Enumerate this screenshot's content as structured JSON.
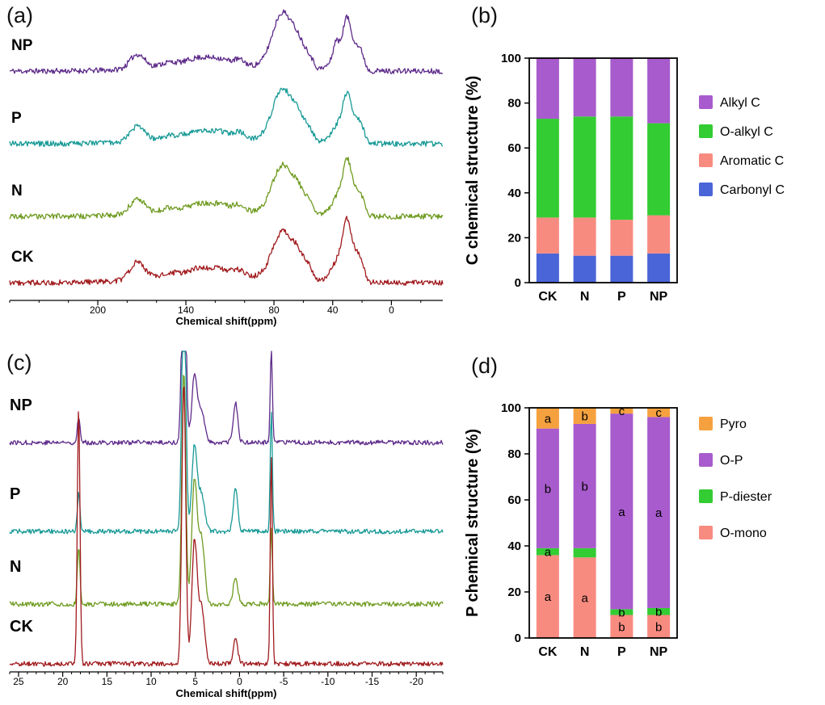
{
  "panels": [
    {
      "id": "a",
      "label": "(a)"
    },
    {
      "id": "b",
      "label": "(b)"
    },
    {
      "id": "c",
      "label": "(c)"
    },
    {
      "id": "d",
      "label": "(d)"
    }
  ],
  "chart_data": [
    {
      "panel": "a",
      "type": "line",
      "variant": "nmr-spectra",
      "nucleus": "13C",
      "xlabel": "Chemical shift(ppm)",
      "xlim": [
        260,
        -35
      ],
      "x_major_ticks": [
        200,
        140,
        80,
        40,
        0
      ],
      "x_minor_step": 20,
      "series": [
        {
          "name": "NP",
          "color": "#5e2b8a",
          "peaks": [
            [
              173,
              0.24,
              5
            ],
            [
              152,
              0.07,
              6
            ],
            [
              130,
              0.13,
              9
            ],
            [
              116,
              0.07,
              5
            ],
            [
              104,
              0.1,
              4
            ],
            [
              120,
              0.1,
              38
            ],
            [
              74,
              0.92,
              7
            ],
            [
              63,
              0.3,
              4
            ],
            [
              56,
              0.18,
              3
            ],
            [
              38,
              0.2,
              1.5
            ],
            [
              33,
              0.42,
              6
            ],
            [
              30,
              0.5,
              2.5
            ],
            [
              24,
              0.26,
              2.5
            ],
            [
              20,
              0.2,
              2
            ]
          ]
        },
        {
          "name": "P",
          "color": "#189a96",
          "peaks": [
            [
              173,
              0.25,
              5
            ],
            [
              152,
              0.06,
              6
            ],
            [
              130,
              0.12,
              9
            ],
            [
              116,
              0.07,
              5
            ],
            [
              104,
              0.1,
              4
            ],
            [
              120,
              0.1,
              38
            ],
            [
              74,
              0.85,
              7
            ],
            [
              63,
              0.28,
              4
            ],
            [
              56,
              0.17,
              3
            ],
            [
              33,
              0.4,
              6
            ],
            [
              30,
              0.48,
              2.5
            ],
            [
              24,
              0.25,
              2.5
            ],
            [
              20,
              0.2,
              2
            ]
          ]
        },
        {
          "name": "N",
          "color": "#6f9b21",
          "peaks": [
            [
              173,
              0.26,
              5
            ],
            [
              152,
              0.06,
              6
            ],
            [
              130,
              0.12,
              9
            ],
            [
              116,
              0.07,
              5
            ],
            [
              104,
              0.1,
              4
            ],
            [
              120,
              0.1,
              38
            ],
            [
              74,
              0.8,
              7
            ],
            [
              63,
              0.28,
              4
            ],
            [
              56,
              0.17,
              3
            ],
            [
              33,
              0.45,
              6
            ],
            [
              30,
              0.55,
              2.5
            ],
            [
              24,
              0.28,
              2.5
            ],
            [
              20,
              0.22,
              2
            ]
          ]
        },
        {
          "name": "CK",
          "color": "#a11b1e",
          "peaks": [
            [
              173,
              0.3,
              5
            ],
            [
              152,
              0.07,
              6
            ],
            [
              130,
              0.13,
              9
            ],
            [
              116,
              0.08,
              5
            ],
            [
              104,
              0.1,
              4
            ],
            [
              120,
              0.12,
              38
            ],
            [
              74,
              0.78,
              7
            ],
            [
              63,
              0.3,
              4
            ],
            [
              56,
              0.18,
              3
            ],
            [
              33,
              0.5,
              6
            ],
            [
              30,
              0.6,
              2.5
            ],
            [
              24,
              0.3,
              2.5
            ],
            [
              20,
              0.24,
              2
            ]
          ]
        }
      ]
    },
    {
      "panel": "b",
      "type": "bar",
      "stacked": true,
      "ylabel": "C chemical structure (%)",
      "ylim": [
        0,
        100
      ],
      "y_ticks": [
        0,
        20,
        40,
        60,
        80,
        100
      ],
      "categories": [
        "CK",
        "N",
        "P",
        "NP"
      ],
      "series": [
        {
          "name": "Carbonyl C",
          "color": "#4a65d8",
          "values": [
            13,
            12,
            12,
            13
          ]
        },
        {
          "name": "Aromatic C",
          "color": "#f88b80",
          "values": [
            16,
            17,
            16,
            17
          ]
        },
        {
          "name": "O-alkyl C",
          "color": "#33cc33",
          "values": [
            44,
            45,
            46,
            41
          ]
        },
        {
          "name": "Alkyl C",
          "color": "#a85bcc",
          "values": [
            27,
            26,
            26,
            29
          ]
        }
      ],
      "legend": [
        "Alkyl C",
        "O-alkyl C",
        "Aromatic C",
        "Carbonyl C"
      ]
    },
    {
      "panel": "c",
      "type": "line",
      "variant": "nmr-spectra",
      "nucleus": "31P",
      "xlabel": "Chemical shift(ppm)",
      "xlim": [
        26,
        -23
      ],
      "x_major_ticks": [
        25,
        20,
        15,
        10,
        5,
        0,
        -5,
        -10,
        -15,
        -20
      ],
      "x_minor_step": 1,
      "series": [
        {
          "name": "NP",
          "color": "#5e2b8a",
          "peaks": [
            [
              18.2,
              0.55,
              0.15
            ],
            [
              6.3,
              5.2,
              0.22
            ],
            [
              5.1,
              1.4,
              0.3
            ],
            [
              4.3,
              0.7,
              0.35
            ],
            [
              0.45,
              0.85,
              0.25
            ],
            [
              -3.6,
              2.0,
              0.12
            ]
          ]
        },
        {
          "name": "P",
          "color": "#189a96",
          "peaks": [
            [
              18.2,
              0.8,
              0.15
            ],
            [
              6.3,
              5.8,
              0.22
            ],
            [
              5.1,
              1.8,
              0.3
            ],
            [
              4.3,
              0.8,
              0.35
            ],
            [
              0.45,
              0.9,
              0.25
            ],
            [
              -3.6,
              2.6,
              0.12
            ]
          ]
        },
        {
          "name": "N",
          "color": "#6f9b21",
          "peaks": [
            [
              18.2,
              1.2,
              0.15
            ],
            [
              6.3,
              5.0,
              0.22
            ],
            [
              5.1,
              2.6,
              0.3
            ],
            [
              4.3,
              1.4,
              0.35
            ],
            [
              0.45,
              0.6,
              0.25
            ],
            [
              -3.6,
              1.6,
              0.12
            ]
          ]
        },
        {
          "name": "CK",
          "color": "#a11b1e",
          "peaks": [
            [
              18.2,
              5.5,
              0.15
            ],
            [
              6.3,
              6.0,
              0.22
            ],
            [
              5.1,
              2.6,
              0.3
            ],
            [
              4.3,
              1.2,
              0.35
            ],
            [
              0.45,
              0.55,
              0.25
            ],
            [
              -3.6,
              4.5,
              0.12
            ]
          ]
        }
      ]
    },
    {
      "panel": "d",
      "type": "bar",
      "stacked": true,
      "ylabel": "P chemical structure (%)",
      "ylim": [
        0,
        100
      ],
      "y_ticks": [
        0,
        20,
        40,
        60,
        80,
        100
      ],
      "categories": [
        "CK",
        "N",
        "P",
        "NP"
      ],
      "series": [
        {
          "name": "O-mono",
          "color": "#f88b80",
          "values": [
            36,
            35,
            10,
            10
          ],
          "letters": [
            "a",
            "a",
            "b",
            "b"
          ]
        },
        {
          "name": "P-diester",
          "color": "#33cc33",
          "values": [
            3,
            4,
            2.5,
            3
          ],
          "letters": [
            "a",
            "",
            "b",
            "b"
          ]
        },
        {
          "name": "O-P",
          "color": "#a85bcc",
          "values": [
            52,
            54,
            85,
            83
          ],
          "letters": [
            "b",
            "b",
            "a",
            "a"
          ]
        },
        {
          "name": "Pyro",
          "color": "#f6a13f",
          "values": [
            9,
            7,
            2.5,
            4
          ],
          "letters": [
            "a",
            "b",
            "c",
            "c"
          ]
        }
      ],
      "legend": [
        "Pyro",
        "O-P",
        "P-diester",
        "O-mono"
      ]
    }
  ]
}
